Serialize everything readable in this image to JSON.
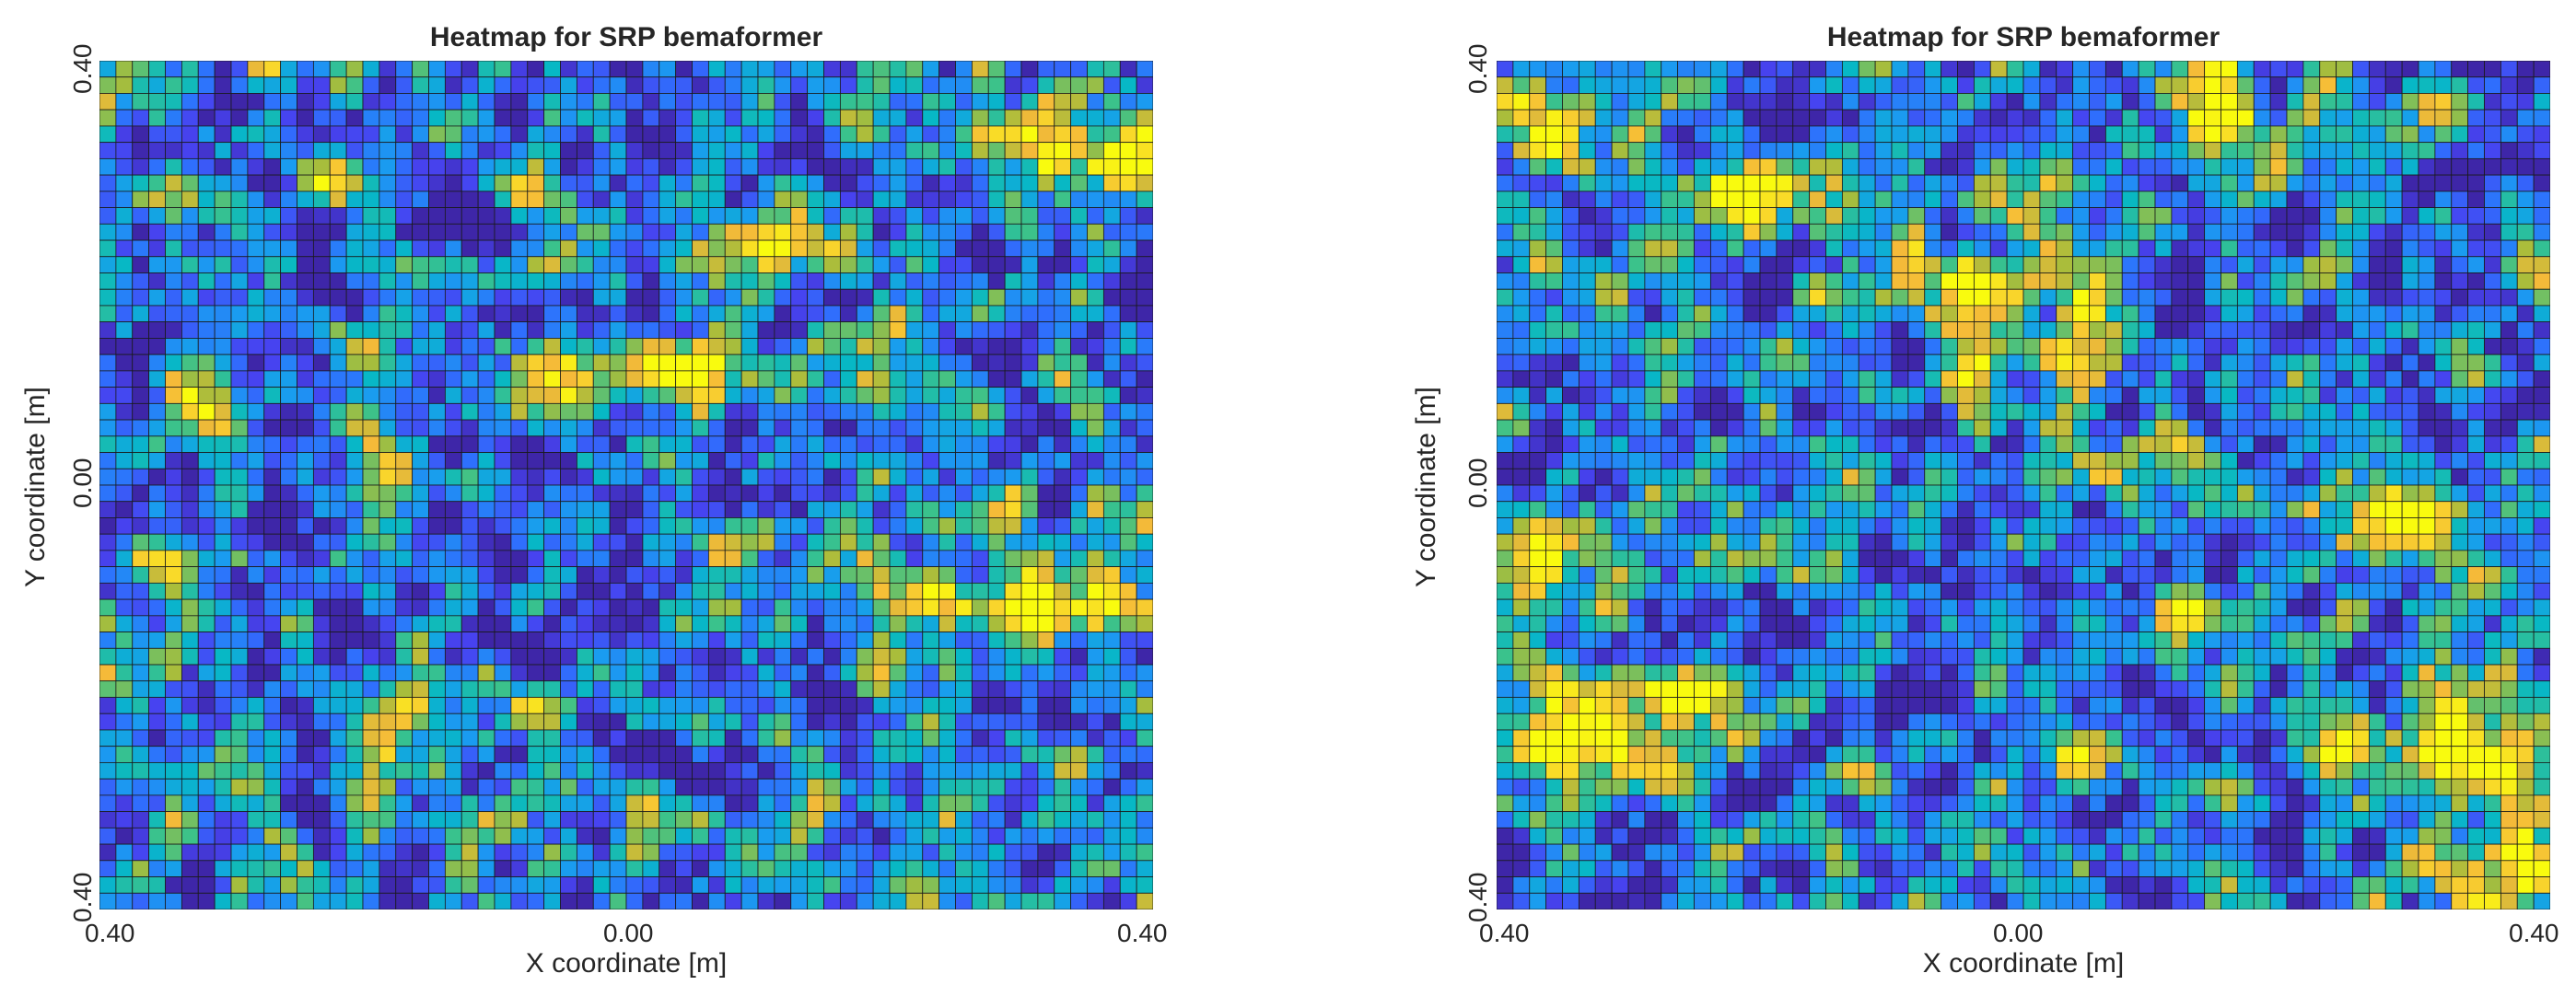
{
  "chart_data": [
    {
      "type": "heatmap",
      "title": "Heatmap for SRP bemaformer",
      "xlabel": "X coordinate [m]",
      "ylabel": "Y coordinate [m]",
      "x_ticks": [
        "0.40",
        "0.00",
        "0.40"
      ],
      "y_ticks": [
        "0.40",
        "0.00",
        "0.40"
      ],
      "xlim": [
        -0.4,
        0.4
      ],
      "ylim": [
        -0.4,
        0.4
      ],
      "grid_cols": 64,
      "grid_rows": 52,
      "colormap": "parula",
      "colormap_colors": [
        "#3e26a8",
        "#4743f0",
        "#2f6ffd",
        "#1a9cf0",
        "#07b8c5",
        "#3cc28a",
        "#a9bd3b",
        "#f5ba39",
        "#f9d82a",
        "#f9fb0e"
      ],
      "seed": 7,
      "hotspots": [
        {
          "x": 0.11,
          "y": 0.225,
          "sx": 0.025,
          "sy": 0.02,
          "a": 0.95
        },
        {
          "x": 0.01,
          "y": 0.1,
          "sx": 0.05,
          "sy": 0.02,
          "a": 0.85
        },
        {
          "x": 0.06,
          "y": 0.12,
          "sx": 0.02,
          "sy": 0.015,
          "a": 0.6
        },
        {
          "x": -0.32,
          "y": 0.07,
          "sx": 0.025,
          "sy": 0.02,
          "a": 0.7
        },
        {
          "x": -0.35,
          "y": -0.07,
          "sx": 0.03,
          "sy": 0.015,
          "a": 0.6
        },
        {
          "x": -0.18,
          "y": -0.24,
          "sx": 0.02,
          "sy": 0.025,
          "a": 0.75
        },
        {
          "x": -0.22,
          "y": 0.28,
          "sx": 0.015,
          "sy": 0.02,
          "a": 0.5
        },
        {
          "x": 0.18,
          "y": 0.14,
          "sx": 0.02,
          "sy": 0.015,
          "a": 0.55
        },
        {
          "x": 0.35,
          "y": 0.31,
          "sx": 0.06,
          "sy": 0.03,
          "a": 0.6
        },
        {
          "x": 0.31,
          "y": -0.12,
          "sx": 0.08,
          "sy": 0.02,
          "a": 0.55
        },
        {
          "x": 0.22,
          "y": -0.1,
          "sx": 0.025,
          "sy": 0.02,
          "a": 0.45
        },
        {
          "x": 0.1,
          "y": -0.05,
          "sx": 0.015,
          "sy": 0.015,
          "a": 0.5
        }
      ]
    },
    {
      "type": "heatmap",
      "title": "Heatmap for SRP bemaformer",
      "xlabel": "X coordinate [m]",
      "ylabel": "Y coordinate [m]",
      "x_ticks": [
        "0.40",
        "0.00",
        "0.40"
      ],
      "y_ticks": [
        "0.40",
        "0.00",
        "0.40"
      ],
      "xlim": [
        -0.4,
        0.4
      ],
      "ylim": [
        -0.4,
        0.4
      ],
      "grid_cols": 64,
      "grid_rows": 52,
      "colormap": "parula",
      "colormap_colors": [
        "#3e26a8",
        "#4743f0",
        "#2f6ffd",
        "#1a9cf0",
        "#07b8c5",
        "#3cc28a",
        "#a9bd3b",
        "#f5ba39",
        "#f9d82a",
        "#f9fb0e"
      ],
      "seed": 23,
      "hotspots": [
        {
          "x": 0.15,
          "y": 0.36,
          "sx": 0.025,
          "sy": 0.04,
          "a": 0.85
        },
        {
          "x": -0.21,
          "y": 0.28,
          "sx": 0.03,
          "sy": 0.02,
          "a": 0.8
        },
        {
          "x": -0.04,
          "y": 0.19,
          "sx": 0.02,
          "sy": 0.025,
          "a": 0.9
        },
        {
          "x": -0.04,
          "y": 0.11,
          "sx": 0.015,
          "sy": 0.015,
          "a": 0.75
        },
        {
          "x": 0.04,
          "y": 0.14,
          "sx": 0.015,
          "sy": 0.05,
          "a": 0.6
        },
        {
          "x": 0.29,
          "y": -0.03,
          "sx": 0.04,
          "sy": 0.025,
          "a": 0.9
        },
        {
          "x": 0.21,
          "y": -0.02,
          "sx": 0.015,
          "sy": 0.012,
          "a": 0.6
        },
        {
          "x": -0.37,
          "y": -0.07,
          "sx": 0.03,
          "sy": 0.025,
          "a": 0.7
        },
        {
          "x": -0.34,
          "y": -0.24,
          "sx": 0.06,
          "sy": 0.04,
          "a": 0.85
        },
        {
          "x": -0.26,
          "y": -0.2,
          "sx": 0.025,
          "sy": 0.02,
          "a": 0.7
        },
        {
          "x": 0.04,
          "y": -0.25,
          "sx": 0.02,
          "sy": 0.02,
          "a": 0.8
        },
        {
          "x": 0.34,
          "y": -0.25,
          "sx": 0.04,
          "sy": 0.04,
          "a": 0.85
        },
        {
          "x": 0.38,
          "y": -0.37,
          "sx": 0.03,
          "sy": 0.025,
          "a": 0.8
        },
        {
          "x": 0.24,
          "y": -0.25,
          "sx": 0.015,
          "sy": 0.02,
          "a": 0.7
        },
        {
          "x": 0.12,
          "y": -0.12,
          "sx": 0.015,
          "sy": 0.02,
          "a": 0.55
        },
        {
          "x": -0.35,
          "y": 0.33,
          "sx": 0.06,
          "sy": 0.025,
          "a": 0.5
        },
        {
          "x": -0.12,
          "y": 0.27,
          "sx": 0.02,
          "sy": 0.05,
          "a": 0.45
        }
      ]
    }
  ]
}
